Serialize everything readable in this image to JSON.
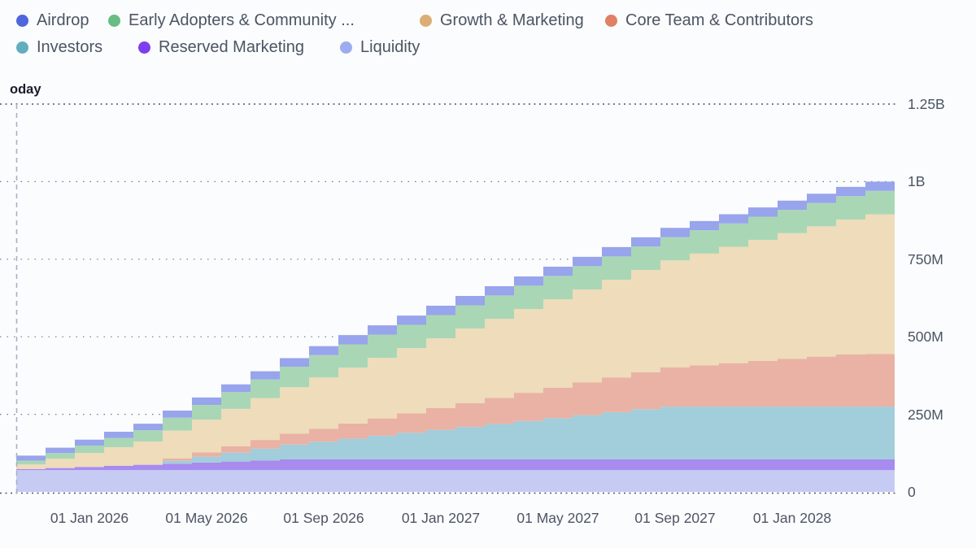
{
  "legend": {
    "rows": [
      [
        {
          "label": "Airdrop",
          "dot_color": "#4f66dc"
        },
        {
          "label": "Early Adopters & Community ...",
          "dot_color": "#68bd85"
        },
        {
          "label": "Growth & Marketing",
          "dot_color": "#ddad76"
        },
        {
          "label": "Core Team & Contributors",
          "dot_color": "#e08065"
        }
      ],
      [
        {
          "label": "Investors",
          "dot_color": "#63aebe"
        },
        {
          "label": "Reserved Marketing",
          "dot_color": "#7e3ff0"
        },
        {
          "label": "Liquidity",
          "dot_color": "#9dabf0"
        }
      ]
    ]
  },
  "axis": {
    "today_label": "oday"
  },
  "chart_data": {
    "type": "area",
    "stacked": true,
    "step": true,
    "title": "",
    "xlabel": "",
    "ylabel": "",
    "ylim": [
      0,
      1310000000
    ],
    "grid": "dotted-horizontal",
    "legend_position": "top",
    "unit": "tokens (M = millions)",
    "x_months": [
      "Nov 2025",
      "Dec 2025",
      "Jan 2026",
      "Feb 2026",
      "Mar 2026",
      "Apr 2026",
      "May 2026",
      "Jun 2026",
      "Jul 2026",
      "Aug 2026",
      "Sep 2026",
      "Oct 2026",
      "Nov 2026",
      "Dec 2026",
      "Jan 2027",
      "Feb 2027",
      "Mar 2027",
      "Apr 2027",
      "May 2027",
      "Jun 2027",
      "Jul 2027",
      "Aug 2027",
      "Sep 2027",
      "Oct 2027",
      "Nov 2027",
      "Dec 2027",
      "Jan 2028",
      "Feb 2028",
      "Mar 2028",
      "Apr 2028"
    ],
    "x_tick_indices": [
      2,
      6,
      10,
      14,
      18,
      22,
      26
    ],
    "x_tick_labels": [
      "01 Jan 2026",
      "01 May 2026",
      "01 Sep 2026",
      "01 Jan 2027",
      "01 May 2027",
      "01 Sep 2027",
      "01 Jan 2028"
    ],
    "y_ticks": [
      {
        "label": "0",
        "value_millions": 0,
        "major": true
      },
      {
        "label": "250M",
        "value_millions": 250,
        "major": false
      },
      {
        "label": "500M",
        "value_millions": 500,
        "major": false
      },
      {
        "label": "750M",
        "value_millions": 750,
        "major": false
      },
      {
        "label": "1B",
        "value_millions": 1000,
        "major": false
      },
      {
        "label": "1.25B",
        "value_millions": 1250,
        "major": true
      }
    ],
    "today_at_index": 0,
    "total_supply_millions": 1000,
    "series_order_note": "bottom to top in stack",
    "series": [
      {
        "name": "liquidity",
        "label": "Liquidity",
        "area_color": "#c6cbf3",
        "values_millions": [
          70,
          70,
          70,
          70,
          70,
          70,
          70,
          70,
          70,
          70,
          70,
          70,
          70,
          70,
          70,
          70,
          70,
          70,
          70,
          70,
          70,
          70,
          70,
          70,
          70,
          70,
          70,
          70,
          70,
          70
        ]
      },
      {
        "name": "reserved-marketing",
        "label": "Reserved Marketing",
        "area_color": "#a78bef",
        "values_millions": [
          3.5,
          7,
          10.5,
          14,
          17.5,
          21,
          24.5,
          28,
          31.5,
          35,
          35,
          35,
          35,
          35,
          35,
          35,
          35,
          35,
          35,
          35,
          35,
          35,
          35,
          35,
          35,
          35,
          35,
          35,
          35,
          35
        ]
      },
      {
        "name": "investors",
        "label": "Investors",
        "area_color": "#a2cdda",
        "values_millions": [
          0,
          0,
          0,
          0,
          0,
          9.5,
          19,
          28.5,
          38,
          47.5,
          57,
          66.5,
          76,
          85.5,
          95,
          104.5,
          114,
          123.5,
          133,
          142.5,
          152,
          161.5,
          170,
          170,
          170,
          170,
          170,
          170,
          170,
          170
        ]
      },
      {
        "name": "core-team",
        "label": "Core Team & Contributors",
        "area_color": "#e9b2a4",
        "values_millions": [
          0,
          0,
          0,
          0,
          0,
          7,
          14,
          21,
          28,
          35,
          42,
          49,
          56,
          63,
          70,
          77,
          84,
          91,
          98,
          105,
          112,
          119,
          126,
          133,
          140,
          147,
          154,
          161,
          168,
          170
        ]
      },
      {
        "name": "growth-marketing",
        "label": "Growth & Marketing",
        "area_color": "#eedcba",
        "values_millions": [
          15,
          30,
          45,
          60,
          75,
          90,
          105,
          120,
          135,
          150,
          165,
          180,
          195,
          210,
          225,
          240,
          255,
          270,
          285,
          300,
          315,
          330,
          345,
          360,
          375,
          390,
          405,
          420,
          435,
          450
        ]
      },
      {
        "name": "early-adopters",
        "label": "Early Adopters & Community ...",
        "area_color": "#a9d7b5",
        "values_millions": [
          12,
          18,
          24,
          30,
          36,
          42,
          48,
          54,
          60,
          66,
          72,
          75,
          75,
          75,
          75,
          75,
          75,
          75,
          75,
          75,
          75,
          75,
          75,
          75,
          75,
          75,
          75,
          75,
          75,
          75
        ]
      },
      {
        "name": "airdrop",
        "label": "Airdrop",
        "area_color": "#98a4ec",
        "values_millions": [
          16.3,
          17.5,
          18.8,
          20,
          21.3,
          22.5,
          23.8,
          25,
          26.3,
          27.5,
          28.8,
          30,
          30,
          30,
          30,
          30,
          30,
          30,
          30,
          30,
          30,
          30,
          30,
          30,
          30,
          30,
          30,
          30,
          30,
          30
        ]
      }
    ],
    "colors": {
      "grid_major": "#4b5563",
      "grid_minor": "#6f7684",
      "today_line": "#aab0bf",
      "background": "#fbfcfe",
      "axis_text": "#4b5563"
    }
  }
}
